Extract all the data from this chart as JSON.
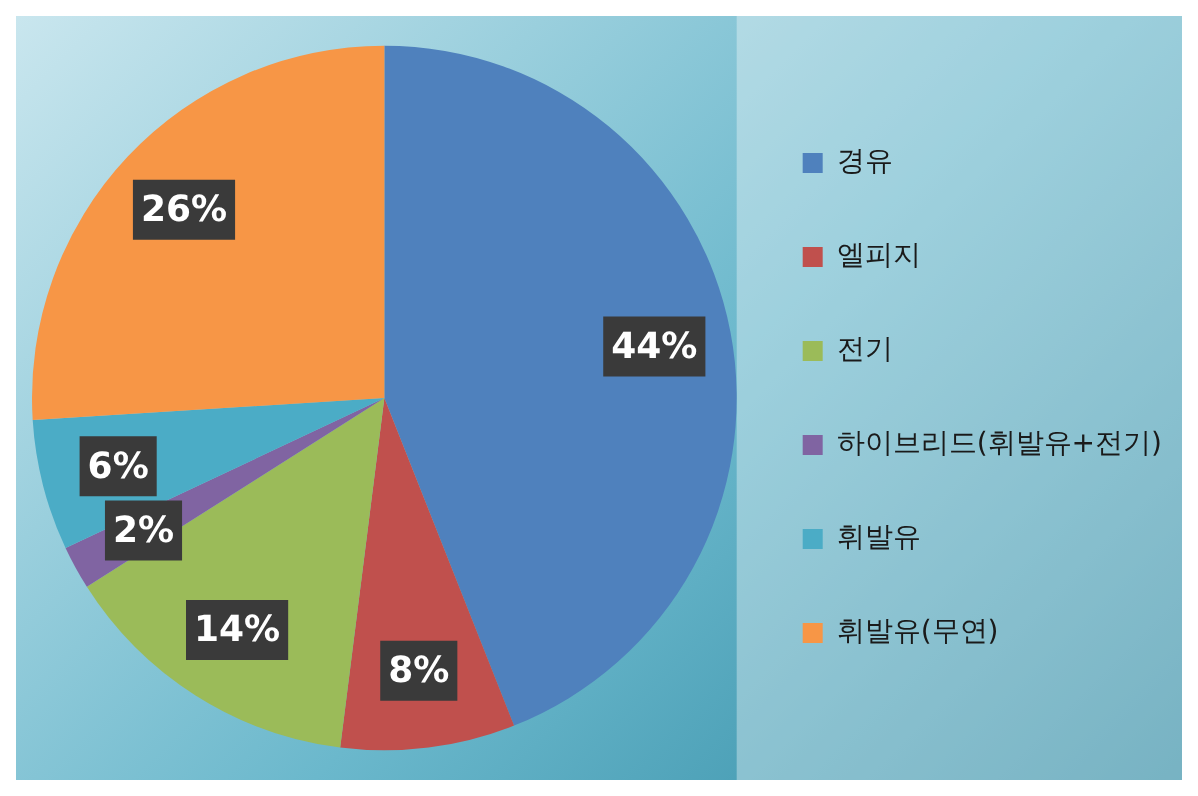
{
  "chart_data": {
    "type": "pie",
    "categories": [
      "경유",
      "엘피지",
      "전기",
      "하이브리드(휘발유+전기)",
      "휘발유",
      "휘발유(무연)"
    ],
    "values": [
      44,
      8,
      14,
      2,
      6,
      26
    ],
    "colors": [
      "#4f81bd",
      "#c0504d",
      "#9bbb59",
      "#8064a2",
      "#4bacc6",
      "#f79646"
    ],
    "value_labels": [
      "44%",
      "8%",
      "14%",
      "2%",
      "6%",
      "26%"
    ],
    "legend": "right"
  }
}
